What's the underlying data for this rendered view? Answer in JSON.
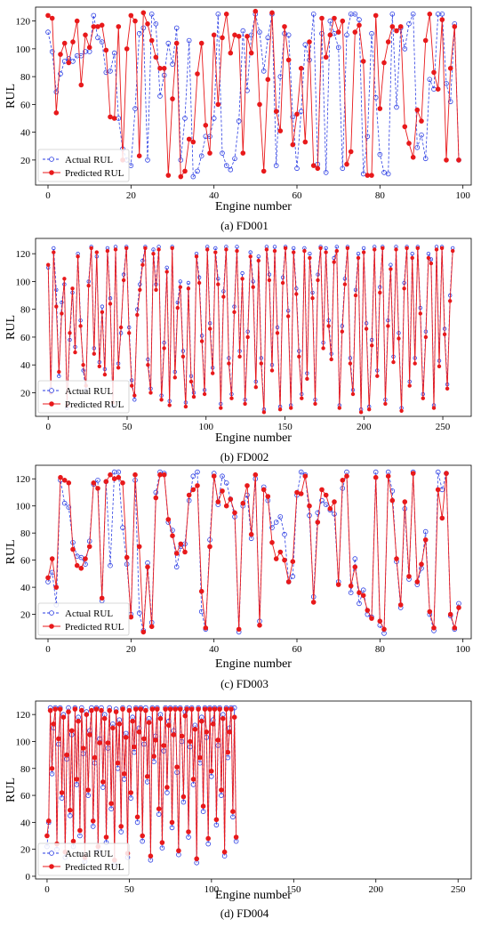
{
  "colors": {
    "actual": "#2b3de3",
    "predicted": "#e8191b",
    "axis": "#000000",
    "legend_border": "#cccccc"
  },
  "chart_data": [
    {
      "type": "line",
      "caption": "(a) FD001",
      "xlabel": "Engine number",
      "ylabel": "RUL",
      "xlim": [
        -3,
        102
      ],
      "ylim": [
        2,
        130
      ],
      "xticks": [
        0,
        20,
        40,
        60,
        80,
        100
      ],
      "yticks": [
        20,
        40,
        60,
        80,
        100,
        120
      ],
      "legend_position": "lower-left",
      "series": [
        {
          "name": "Actual RUL",
          "style": "dashed-open-circle",
          "values": [
            112,
            98,
            69,
            82,
            91,
            93,
            91,
            95,
            95,
            98,
            98,
            124,
            108,
            105,
            83,
            84,
            97,
            50,
            28,
            20,
            16,
            57,
            111,
            115,
            20,
            125,
            118,
            66,
            81,
            104,
            89,
            115,
            20,
            50,
            106,
            8,
            12,
            23,
            37,
            37,
            50,
            125,
            25,
            16,
            13,
            21,
            48,
            113,
            70,
            110,
            125,
            112,
            84,
            108,
            125,
            16,
            80,
            111,
            110,
            51,
            14,
            55,
            103,
            92,
            125,
            17,
            111,
            11,
            120,
            111,
            101,
            14,
            110,
            125,
            125,
            121,
            10,
            37,
            111,
            65,
            24,
            11,
            10,
            125,
            58,
            115,
            100,
            118,
            125,
            29,
            38,
            21,
            78,
            71,
            125,
            125,
            75,
            62,
            118,
            20
          ]
        },
        {
          "name": "Predicted RUL",
          "style": "solid-filled-circle",
          "values": [
            124,
            122,
            54,
            96,
            104,
            90,
            105,
            120,
            74,
            110,
            101,
            116,
            116,
            117,
            99,
            51,
            50,
            116,
            20,
            100,
            124,
            120,
            23,
            126,
            118,
            106,
            94,
            86,
            86,
            9,
            64,
            104,
            8,
            12,
            35,
            33,
            82,
            104,
            45,
            25,
            110,
            60,
            108,
            125,
            97,
            110,
            109,
            25,
            109,
            97,
            127,
            60,
            12,
            78,
            126,
            55,
            41,
            116,
            92,
            31,
            53,
            86,
            33,
            105,
            16,
            14,
            122,
            94,
            110,
            122,
            112,
            120,
            17,
            26,
            112,
            117,
            91,
            9,
            9,
            124,
            57,
            90,
            105,
            116,
            113,
            116,
            44,
            32,
            22,
            56,
            48,
            106,
            125,
            83,
            71,
            121,
            20,
            86,
            116,
            20
          ]
        }
      ]
    },
    {
      "type": "line",
      "caption": "(b) FD002",
      "xlabel": "Engine number",
      "ylabel": "RUL",
      "xlim": [
        -8,
        268
      ],
      "ylim": [
        3,
        131
      ],
      "xticks": [
        0,
        50,
        100,
        150,
        200,
        250
      ],
      "yticks": [
        20,
        40,
        60,
        80,
        100,
        120
      ],
      "legend_position": "lower-left",
      "series": [
        {
          "name": "Actual RUL",
          "style": "dashed-open-circle",
          "values": [
            110,
            23,
            124,
            94,
            32,
            85,
            98,
            9,
            58,
            92,
            53,
            120,
            72,
            36,
            22,
            100,
            125,
            52,
            118,
            42,
            82,
            37,
            124,
            88,
            10,
            125,
            41,
            63,
            105,
            125,
            67,
            29,
            15,
            80,
            98,
            115,
            125,
            44,
            23,
            123,
            98,
            125,
            18,
            56,
            110,
            14,
            125,
            35,
            85,
            100,
            50,
            13,
            99,
            32,
            20,
            120,
            103,
            61,
            22,
            125,
            70,
            38,
            124,
            102,
            12,
            93,
            125,
            45,
            19,
            82,
            125,
            50,
            106,
            15,
            64,
            121,
            100,
            28,
            118,
            45,
            8,
            125,
            105,
            40,
            125,
            67,
            10,
            103,
            125,
            79,
            11,
            124,
            95,
            50,
            19,
            124,
            34,
            120,
            92,
            15,
            105,
            125,
            56,
            124,
            72,
            48,
            117,
            125,
            11,
            68,
            102,
            125,
            45,
            22,
            94,
            120,
            8,
            124,
            70,
            10,
            58,
            125,
            36,
            96,
            125,
            15,
            72,
            112,
            46,
            125,
            63,
            9,
            99,
            125,
            28,
            120,
            45,
            125,
            81,
            19,
            64,
            120,
            116,
            11,
            125,
            43,
            125,
            66,
            26,
            90,
            124
          ]
        },
        {
          "name": "Predicted RUL",
          "style": "solid-filled-circle",
          "values": [
            112,
            20,
            121,
            82,
            35,
            77,
            102,
            11,
            63,
            95,
            49,
            118,
            68,
            40,
            25,
            97,
            124,
            48,
            121,
            39,
            78,
            33,
            122,
            84,
            13,
            123,
            38,
            67,
            101,
            124,
            63,
            25,
            18,
            76,
            94,
            112,
            124,
            40,
            20,
            120,
            94,
            123,
            15,
            52,
            107,
            11,
            124,
            31,
            81,
            96,
            46,
            10,
            95,
            28,
            17,
            118,
            99,
            57,
            19,
            123,
            66,
            34,
            121,
            98,
            9,
            89,
            123,
            41,
            16,
            78,
            122,
            46,
            102,
            12,
            60,
            118,
            96,
            24,
            115,
            41,
            6,
            123,
            101,
            36,
            122,
            63,
            8,
            99,
            124,
            75,
            9,
            121,
            91,
            46,
            16,
            122,
            30,
            117,
            88,
            12,
            101,
            124,
            52,
            121,
            68,
            44,
            114,
            122,
            9,
            64,
            98,
            124,
            41,
            19,
            90,
            117,
            6,
            121,
            66,
            8,
            54,
            123,
            32,
            92,
            124,
            12,
            68,
            109,
            42,
            123,
            59,
            7,
            95,
            124,
            25,
            117,
            41,
            124,
            77,
            16,
            60,
            117,
            113,
            9,
            123,
            39,
            124,
            62,
            23,
            86,
            122
          ]
        }
      ]
    },
    {
      "type": "line",
      "caption": "(c) FD003",
      "xlabel": "Engine number",
      "ylabel": "RUL",
      "xlim": [
        -3,
        102
      ],
      "ylim": [
        2,
        130
      ],
      "xticks": [
        0,
        20,
        40,
        60,
        80,
        100
      ],
      "yticks": [
        20,
        40,
        60,
        80,
        100,
        120
      ],
      "legend_position": "lower-left",
      "series": [
        {
          "name": "Actual RUL",
          "style": "dashed-open-circle",
          "values": [
            44,
            51,
            27,
            119,
            102,
            99,
            73,
            63,
            62,
            57,
            74,
            116,
            119,
            30,
            118,
            56,
            125,
            125,
            84,
            57,
            20,
            119,
            21,
            8,
            58,
            14,
            110,
            125,
            124,
            88,
            82,
            55,
            70,
            72,
            104,
            122,
            125,
            22,
            9,
            75,
            124,
            101,
            122,
            117,
            105,
            92,
            7,
            100,
            108,
            76,
            120,
            15,
            114,
            104,
            84,
            88,
            92,
            79,
            44,
            48,
            108,
            125,
            123,
            93,
            33,
            95,
            104,
            101,
            97,
            94,
            44,
            113,
            125,
            36,
            61,
            28,
            38,
            20,
            18,
            125,
            12,
            6,
            125,
            111,
            59,
            25,
            98,
            46,
            125,
            42,
            54,
            81,
            20,
            8,
            125,
            112,
            124,
            19,
            9,
            28
          ]
        },
        {
          "name": "Predicted RUL",
          "style": "solid-filled-circle",
          "values": [
            47,
            61,
            40,
            121,
            119,
            117,
            68,
            56,
            54,
            61,
            70,
            117,
            113,
            32,
            118,
            123,
            120,
            121,
            117,
            62,
            18,
            123,
            70,
            7,
            55,
            11,
            106,
            123,
            123,
            90,
            78,
            65,
            72,
            66,
            108,
            112,
            115,
            37,
            10,
            70,
            122,
            103,
            111,
            100,
            105,
            95,
            9,
            102,
            115,
            79,
            123,
            12,
            112,
            107,
            73,
            61,
            66,
            60,
            44,
            59,
            110,
            109,
            122,
            100,
            29,
            88,
            112,
            108,
            98,
            103,
            42,
            119,
            122,
            41,
            55,
            36,
            34,
            23,
            17,
            121,
            15,
            9,
            122,
            104,
            61,
            27,
            103,
            48,
            124,
            44,
            57,
            75,
            22,
            10,
            112,
            91,
            124,
            20,
            10,
            25
          ]
        }
      ]
    },
    {
      "type": "line",
      "caption": "(d) FD004",
      "xlabel": "Engine number",
      "ylabel": "RUL",
      "xlim": [
        -7,
        258
      ],
      "ylim": [
        -2,
        130
      ],
      "xticks": [
        0,
        50,
        100,
        150,
        200,
        250
      ],
      "yticks": [
        0,
        20,
        40,
        60,
        80,
        100,
        120
      ],
      "legend_position": "lower-left",
      "series": [
        {
          "name": "Actual RUL",
          "style": "dashed-open-circle",
          "values": [
            22,
            40,
            125,
            76,
            110,
            125,
            20,
            98,
            125,
            58,
            120,
            14,
            87,
            125,
            45,
            105,
            22,
            125,
            68,
            118,
            30,
            125,
            91,
            11,
            122,
            60,
            108,
            125,
            37,
            84,
            125,
            18,
            102,
            125,
            66,
            120,
            25,
            95,
            125,
            50,
            113,
            9,
            124,
            80,
            116,
            33,
            125,
            72,
            106,
            14,
            125,
            58,
            118,
            92,
            125,
            40,
            110,
            125,
            26,
            98,
            125,
            70,
            117,
            12,
            125,
            85,
            104,
            125,
            46,
            120,
            21,
            93,
            125,
            62,
            115,
            125,
            36,
            108,
            125,
            77,
            16,
            125,
            100,
            55,
            122,
            125,
            29,
            96,
            125,
            68,
            112,
            10,
            125,
            84,
            118,
            48,
            125,
            103,
            24,
            125,
            74,
            116,
            125,
            38,
            97,
            125,
            60,
            120,
            15,
            125,
            88,
            110,
            125,
            44,
            125,
            26
          ]
        },
        {
          "name": "Predicted RUL",
          "style": "solid-filled-circle",
          "values": [
            30,
            41,
            123,
            80,
            113,
            124,
            24,
            102,
            124,
            62,
            118,
            18,
            90,
            122,
            49,
            108,
            26,
            124,
            72,
            115,
            34,
            123,
            95,
            14,
            120,
            64,
            105,
            123,
            41,
            88,
            124,
            22,
            99,
            123,
            70,
            117,
            29,
            99,
            123,
            54,
            110,
            12,
            122,
            84,
            113,
            37,
            124,
            76,
            103,
            17,
            123,
            62,
            115,
            96,
            124,
            44,
            107,
            124,
            30,
            102,
            123,
            74,
            114,
            15,
            124,
            89,
            101,
            124,
            50,
            117,
            25,
            97,
            124,
            66,
            112,
            124,
            40,
            105,
            124,
            81,
            19,
            124,
            104,
            59,
            119,
            124,
            33,
            100,
            124,
            72,
            109,
            13,
            124,
            88,
            115,
            52,
            124,
            107,
            28,
            124,
            78,
            113,
            124,
            42,
            101,
            124,
            64,
            117,
            18,
            124,
            92,
            107,
            124,
            48,
            118,
            29
          ]
        }
      ]
    }
  ]
}
